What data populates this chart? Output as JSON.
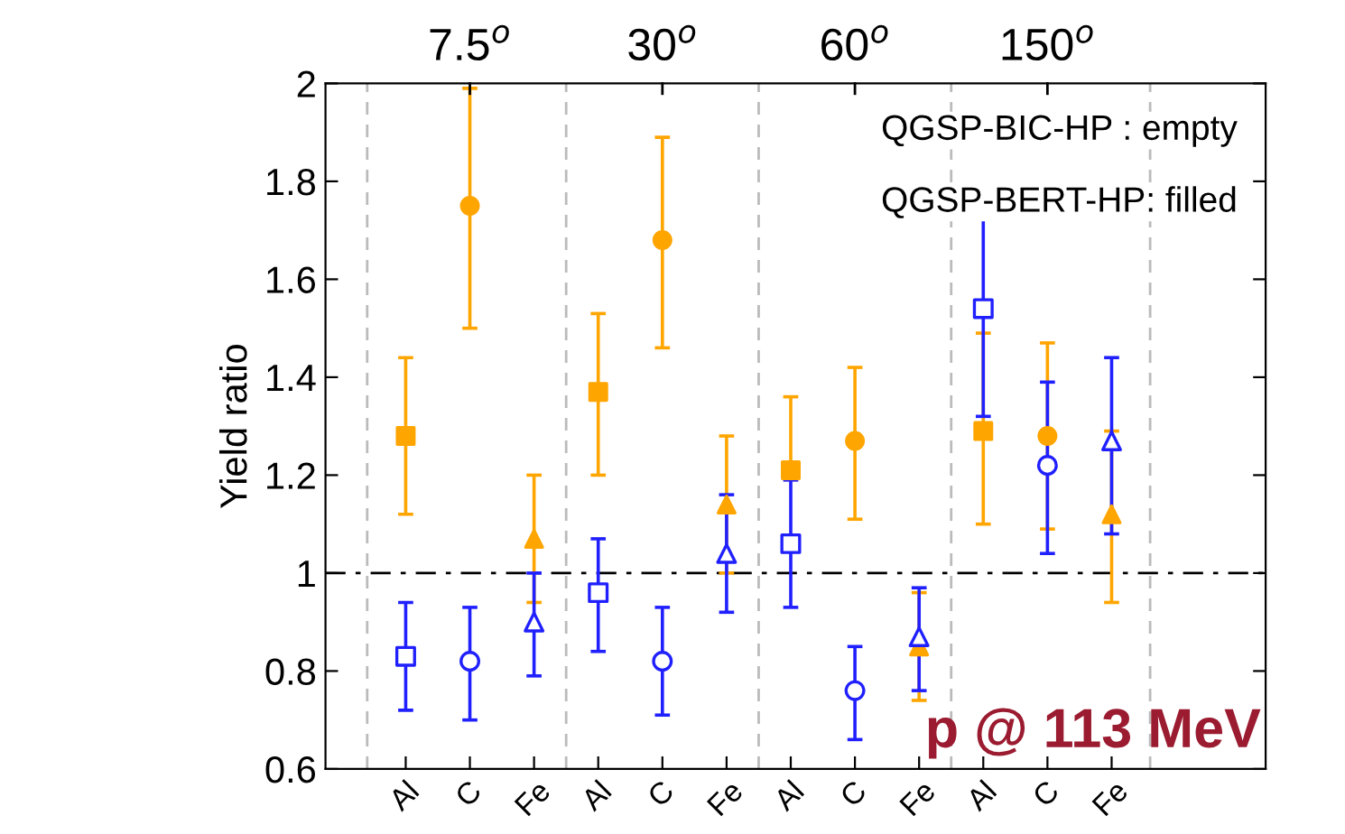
{
  "chart_data": {
    "type": "scatter",
    "ylabel": "Yield ratio",
    "annotations": [
      "7.5$^{o}$",
      "30$^{o}$",
      "60$^{o}$",
      "150$^{o}$",
      "QGSP-BIC-HP : empty",
      "QGSP-BERT-HP: filled",
      "p @ 113 MeV"
    ],
    "categories": [
      "Al",
      "C",
      "Fe",
      "Al",
      "C",
      "Fe",
      "Al",
      "C",
      "Fe",
      "Al",
      "C",
      "Fe"
    ],
    "series": [
      {
        "color": "#ffa500",
        "marker": "square",
        "values": [
          1.28,
          null,
          null,
          1.37,
          null,
          null,
          1.21,
          null,
          null,
          1.29,
          null,
          null
        ],
        "errors": [
          [
            1.12,
            1.44
          ],
          null,
          null,
          [
            1.2,
            1.53
          ],
          null,
          null,
          [
            1.21,
            1.36
          ],
          null,
          null,
          [
            1.1,
            1.49
          ],
          null,
          null
        ]
      },
      {
        "color": "#ffa500",
        "marker": "circle",
        "values": [
          null,
          1.75,
          null,
          null,
          1.68,
          null,
          null,
          1.27,
          null,
          null,
          1.28,
          null
        ],
        "errors": [
          null,
          [
            1.5,
            1.99
          ],
          null,
          null,
          [
            1.46,
            1.89
          ],
          null,
          null,
          [
            1.11,
            1.42
          ],
          null,
          null,
          [
            1.09,
            1.47
          ],
          null
        ]
      },
      {
        "color": "#ffa500",
        "marker": "triangle",
        "values": [
          null,
          null,
          1.07,
          null,
          null,
          1.14,
          null,
          null,
          0.85,
          null,
          null,
          1.12
        ],
        "errors": [
          null,
          null,
          [
            0.94,
            1.2
          ],
          null,
          null,
          [
            1.0,
            1.28
          ],
          null,
          null,
          [
            0.74,
            0.96
          ],
          null,
          null,
          [
            0.94,
            1.29
          ]
        ]
      },
      {
        "color": "#2020ff",
        "marker": "square-open",
        "values": [
          0.83,
          null,
          null,
          0.96,
          null,
          null,
          1.06,
          null,
          null,
          1.54,
          null,
          null
        ],
        "errors": [
          [
            0.72,
            0.94
          ],
          null,
          null,
          [
            0.84,
            1.07
          ],
          null,
          null,
          [
            0.93,
            1.19
          ],
          null,
          null,
          [
            1.32,
            1.75
          ],
          null,
          null
        ]
      },
      {
        "color": "#2020ff",
        "marker": "circle-open",
        "values": [
          null,
          0.82,
          null,
          null,
          0.82,
          null,
          null,
          0.76,
          null,
          null,
          1.22,
          null
        ],
        "errors": [
          null,
          [
            0.7,
            0.93
          ],
          null,
          null,
          [
            0.71,
            0.93
          ],
          null,
          null,
          [
            0.66,
            0.85
          ],
          null,
          null,
          [
            1.04,
            1.39
          ],
          null
        ]
      },
      {
        "color": "#2020ff",
        "marker": "triangle-open",
        "values": [
          null,
          null,
          0.9,
          null,
          null,
          1.04,
          null,
          null,
          0.87,
          null,
          null,
          1.27
        ],
        "errors": [
          null,
          null,
          [
            0.79,
            1.0
          ],
          null,
          null,
          [
            0.92,
            1.16
          ],
          null,
          null,
          [
            0.76,
            0.97
          ],
          null,
          null,
          [
            1.08,
            1.44
          ]
        ]
      }
    ],
    "ylim": [
      0.6,
      2
    ],
    "yticks": [
      0.6,
      0.8,
      1,
      1.2,
      1.4,
      1.6,
      1.8,
      2
    ],
    "ref_lines": [
      {
        "axis": "y",
        "value": 1,
        "color": "#000000",
        "line_style": "dashdot"
      }
    ],
    "grid": false,
    "legend": false
  }
}
